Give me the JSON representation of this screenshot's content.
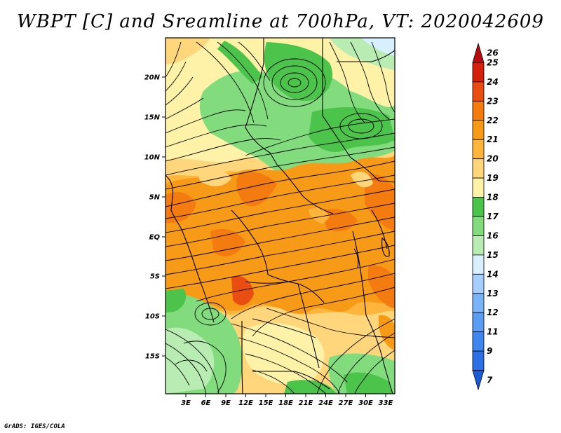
{
  "title": "WBPT [C] and Sreamline at 700hPa, VT: 2020042609",
  "credit": "GrADS: IGES/COLA",
  "axes": {
    "lat_labels": [
      "20N",
      "15N",
      "10N",
      "5N",
      "EQ",
      "5S",
      "10S",
      "15S"
    ],
    "lon_labels": [
      "3E",
      "6E",
      "9E",
      "12E",
      "15E",
      "18E",
      "21E",
      "24E",
      "27E",
      "30E",
      "33E"
    ]
  },
  "colorbar": {
    "labels": [
      "7",
      "9",
      "11",
      "12",
      "13",
      "14",
      "15",
      "16",
      "17",
      "18",
      "19",
      "20",
      "21",
      "22",
      "23",
      "24",
      "25",
      "26"
    ],
    "colors": [
      "#1a5cd6",
      "#2c70e4",
      "#3f86ee",
      "#5b9df3",
      "#7ab4f6",
      "#a6ceff",
      "#d7efff",
      "#b9ecb3",
      "#82dc7e",
      "#4cc34b",
      "#fdf2a8",
      "#ffd67b",
      "#ffb53c",
      "#f79a17",
      "#f37b0f",
      "#ea4d12",
      "#d4210e",
      "#b50d0d"
    ]
  }
}
